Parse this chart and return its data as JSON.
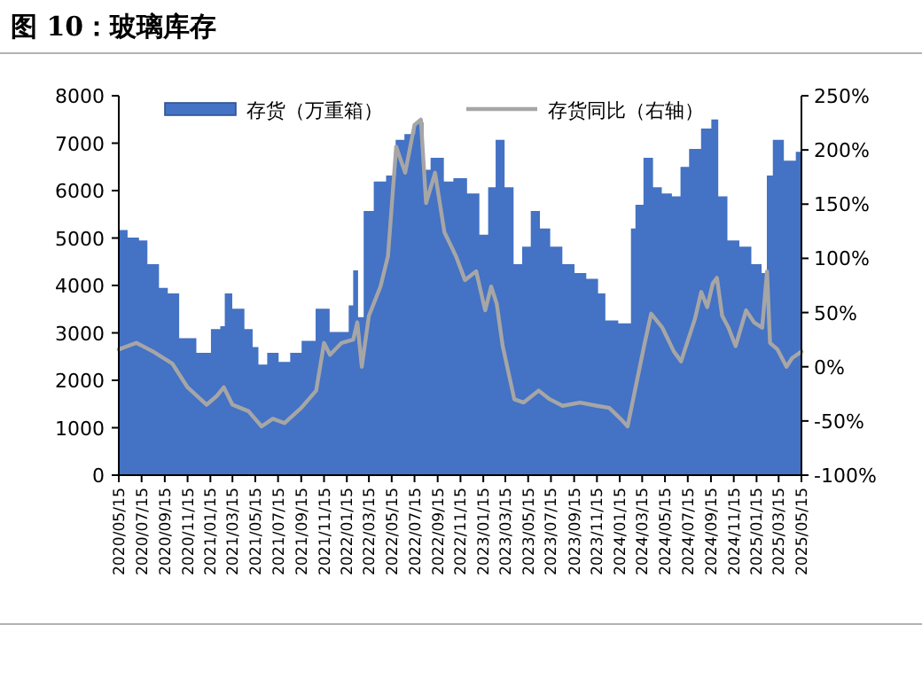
{
  "chart_data": {
    "type": "area",
    "title": "图 10：玻璃库存",
    "legend": "top",
    "ylim": [
      0,
      8000
    ],
    "yticks": [
      0,
      1000,
      2000,
      3000,
      4000,
      5000,
      6000,
      7000,
      8000
    ],
    "y2lim": [
      -100,
      250
    ],
    "y2ticks": [
      {
        "value": -100,
        "label": "-100%"
      },
      {
        "value": -50,
        "label": "-50%"
      },
      {
        "value": 0,
        "label": "0%"
      },
      {
        "value": 50,
        "label": "50%"
      },
      {
        "value": 100,
        "label": "100%"
      },
      {
        "value": 150,
        "label": "150%"
      },
      {
        "value": 200,
        "label": "200%"
      },
      {
        "value": 250,
        "label": "250%"
      }
    ],
    "xlim": [
      "2020-05-15",
      "2025-05-15"
    ],
    "xticks": [
      {
        "value": "2020-05-15",
        "label": "2020/05/15"
      },
      {
        "value": "2020-07-15",
        "label": "2020/07/15"
      },
      {
        "value": "2020-09-15",
        "label": "2020/09/15"
      },
      {
        "value": "2020-11-15",
        "label": "2020/11/15"
      },
      {
        "value": "2021-01-15",
        "label": "2021/01/15"
      },
      {
        "value": "2021-03-15",
        "label": "2021/03/15"
      },
      {
        "value": "2021-05-15",
        "label": "2021/05/15"
      },
      {
        "value": "2021-07-15",
        "label": "2021/07/15"
      },
      {
        "value": "2021-09-15",
        "label": "2021/09/15"
      },
      {
        "value": "2021-11-15",
        "label": "2021/11/15"
      },
      {
        "value": "2022-01-15",
        "label": "2022/01/15"
      },
      {
        "value": "2022-03-15",
        "label": "2022/03/15"
      },
      {
        "value": "2022-05-15",
        "label": "2022/05/15"
      },
      {
        "value": "2022-07-15",
        "label": "2022/07/15"
      },
      {
        "value": "2022-09-15",
        "label": "2022/09/15"
      },
      {
        "value": "2022-11-15",
        "label": "2022/11/15"
      },
      {
        "value": "2023-01-15",
        "label": "2023/01/15"
      },
      {
        "value": "2023-03-15",
        "label": "2023/03/15"
      },
      {
        "value": "2023-05-15",
        "label": "2023/05/15"
      },
      {
        "value": "2023-07-15",
        "label": "2023/07/15"
      },
      {
        "value": "2023-09-15",
        "label": "2023/09/15"
      },
      {
        "value": "2023-11-15",
        "label": "2023/11/15"
      },
      {
        "value": "2024-01-15",
        "label": "2024/01/15"
      },
      {
        "value": "2024-03-15",
        "label": "2024/03/15"
      },
      {
        "value": "2024-05-15",
        "label": "2024/05/15"
      },
      {
        "value": "2024-07-15",
        "label": "2024/07/15"
      },
      {
        "value": "2024-09-15",
        "label": "2024/09/15"
      },
      {
        "value": "2024-11-15",
        "label": "2024/11/15"
      },
      {
        "value": "2025-01-15",
        "label": "2025/01/15"
      },
      {
        "value": "2025-03-15",
        "label": "2025/03/15"
      },
      {
        "value": "2025-05-15",
        "label": "2025/05/15"
      }
    ],
    "series": [
      {
        "name": "存货（万重箱）",
        "type": "area",
        "color": "#4472c4",
        "x": [
          "2020-05-15",
          "2020-07-01",
          "2020-07-15",
          "2020-08-15",
          "2020-09-15",
          "2020-10-01",
          "2020-11-15",
          "2021-01-01",
          "2021-02-01",
          "2021-02-20",
          "2021-02-25",
          "2021-04-01",
          "2021-05-01",
          "2021-05-15",
          "2021-06-01",
          "2021-07-01",
          "2021-08-01",
          "2021-09-01",
          "2021-10-01",
          "2021-11-15",
          "2021-12-15",
          "2022-01-15",
          "2022-01-25",
          "2022-02-08",
          "2022-02-20",
          "2022-03-10",
          "2022-04-15",
          "2022-05-15",
          "2022-06-05",
          "2022-07-01",
          "2022-08-01",
          "2022-08-15",
          "2022-09-08",
          "2022-09-25",
          "2022-10-08",
          "2022-11-15",
          "2022-12-20",
          "2023-01-20",
          "2023-02-05",
          "2023-03-01",
          "2023-03-25",
          "2023-04-18",
          "2023-05-10",
          "2023-06-03",
          "2023-06-28",
          "2023-07-28",
          "2023-09-01",
          "2023-10-01",
          "2023-11-03",
          "2023-12-03",
          "2023-12-12",
          "2024-02-10",
          "2024-02-18",
          "2024-03-05",
          "2024-04-01",
          "2024-04-25",
          "2024-05-18",
          "2024-06-18",
          "2024-07-03",
          "2024-08-03",
          "2024-09-05",
          "2024-09-27",
          "2024-10-12",
          "2024-11-15",
          "2024-12-15",
          "2025-01-18",
          "2025-02-08",
          "2025-02-15",
          "2025-03-12",
          "2025-04-15",
          "2025-05-15"
        ],
        "values": [
          5170,
          5010,
          4950,
          4450,
          3950,
          3830,
          2890,
          2580,
          3080,
          3140,
          3830,
          3510,
          3080,
          2700,
          2330,
          2580,
          2390,
          2580,
          2830,
          3510,
          3020,
          3020,
          3580,
          4320,
          3330,
          5570,
          6190,
          6320,
          7070,
          7190,
          7440,
          6440,
          6690,
          6690,
          6190,
          6260,
          5940,
          5070,
          6070,
          7070,
          6070,
          4450,
          4820,
          5570,
          5200,
          4820,
          4450,
          4260,
          4140,
          3830,
          3260,
          3200,
          5200,
          5700,
          6690,
          6070,
          5940,
          5880,
          6500,
          6880,
          7310,
          7500,
          5880,
          4950,
          4820,
          4450,
          4260,
          6320,
          7070,
          6630,
          6820
        ]
      },
      {
        "name": "存货同比（右轴）",
        "type": "line",
        "axis": "y2",
        "color": "#a6a6a6",
        "x": [
          "2020-05-15",
          "2020-07-01",
          "2020-08-15",
          "2020-10-05",
          "2020-11-15",
          "2021-01-05",
          "2021-02-01",
          "2021-02-20",
          "2021-03-15",
          "2021-04-27",
          "2021-06-01",
          "2021-07-01",
          "2021-08-01",
          "2021-09-15",
          "2021-10-25",
          "2021-11-15",
          "2021-12-01",
          "2022-01-01",
          "2022-02-01",
          "2022-02-12",
          "2022-02-24",
          "2022-03-15",
          "2022-04-15",
          "2022-05-05",
          "2022-05-27",
          "2022-06-20",
          "2022-07-15",
          "2022-08-01",
          "2022-08-15",
          "2022-09-08",
          "2022-10-03",
          "2022-11-03",
          "2022-11-27",
          "2022-12-27",
          "2023-01-20",
          "2023-02-05",
          "2023-02-20",
          "2023-03-08",
          "2023-04-08",
          "2023-05-03",
          "2023-06-12",
          "2023-07-12",
          "2023-08-15",
          "2023-10-01",
          "2023-11-15",
          "2023-12-18",
          "2024-01-20",
          "2024-02-05",
          "2024-03-20",
          "2024-04-08",
          "2024-05-08",
          "2024-06-08",
          "2024-06-27",
          "2024-08-03",
          "2024-08-20",
          "2024-09-05",
          "2024-09-20",
          "2024-10-01",
          "2024-10-15",
          "2024-11-01",
          "2024-11-20",
          "2024-12-18",
          "2025-01-08",
          "2025-01-30",
          "2025-02-12",
          "2025-02-20",
          "2025-03-12",
          "2025-04-05",
          "2025-04-20",
          "2025-05-15"
        ],
        "values": [
          16,
          22,
          14,
          3,
          -19,
          -35,
          -27,
          -19,
          -35,
          -41,
          -55,
          -48,
          -52,
          -38,
          -22,
          22,
          11,
          22,
          25,
          41,
          0,
          47,
          74,
          102,
          203,
          179,
          223,
          228,
          151,
          179,
          124,
          102,
          80,
          88,
          52,
          74,
          58,
          19,
          -30,
          -33,
          -22,
          -30,
          -36,
          -33,
          -36,
          -38,
          -49,
          -55,
          19,
          49,
          36,
          14,
          5,
          44,
          69,
          55,
          77,
          82,
          47,
          36,
          19,
          52,
          41,
          36,
          88,
          22,
          16,
          0,
          8,
          14
        ]
      }
    ]
  }
}
